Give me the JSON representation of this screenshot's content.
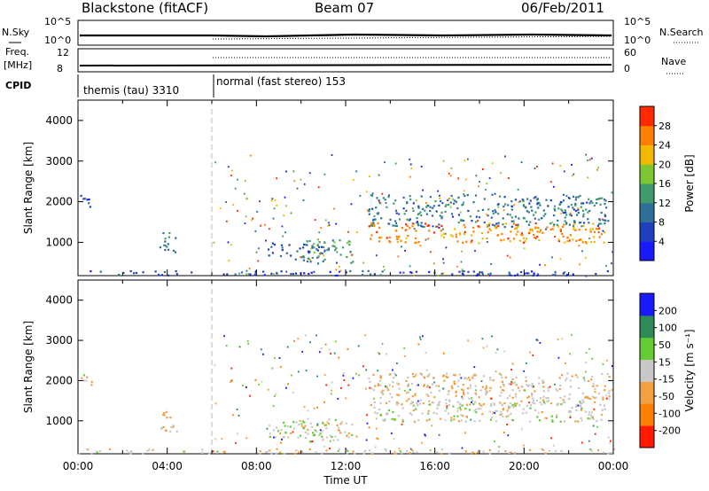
{
  "header": {
    "station": "Blackstone (fitACF)",
    "beam": "Beam 07",
    "date": "06/Feb/2011"
  },
  "top_panels": {
    "nsky_label": "N.Sky",
    "nsearch_label": "N.Search",
    "nsky_ticks": [
      "10^5",
      "10^0"
    ],
    "nsearch_ticks": [
      "10^5",
      "10^0"
    ],
    "freq_label": "Freq.",
    "freq_unit": "[MHz]",
    "freq_ticks": [
      "12",
      "8"
    ],
    "nave_label": "Nave",
    "nave_ticks": [
      "60",
      "0"
    ],
    "cpid_label": "CPID",
    "cpid_segments": [
      {
        "label": "themis (tau) 3310",
        "start_hour": 0,
        "end_hour": 6
      },
      {
        "label": "normal (fast stereo) 153",
        "start_hour": 6,
        "end_hour": 24
      }
    ]
  },
  "chart_data": [
    {
      "type": "heatmap",
      "name": "power",
      "ylabel": "Slant Range [km]",
      "xlabel": "",
      "xlim": [
        0,
        24
      ],
      "ylim": [
        180,
        4500
      ],
      "y_ticks": [
        1000,
        2000,
        3000,
        4000
      ],
      "colorbar": {
        "label": "Power [dB]",
        "ticks": [
          "4",
          "8",
          "12",
          "16",
          "20",
          "24",
          "28"
        ],
        "range": [
          0,
          30
        ],
        "colors": [
          "#1a1aff",
          "#1f3fbf",
          "#2e6f9a",
          "#3f9a6c",
          "#7dc832",
          "#f2b800",
          "#ff7f00",
          "#ff2a00"
        ]
      },
      "echo_regions": [
        {
          "t": [
            0.1,
            0.6
          ],
          "r": [
            1800,
            2200
          ],
          "value": 6
        },
        {
          "t": [
            3.6,
            4.4
          ],
          "r": [
            750,
            1300
          ],
          "value": 10
        },
        {
          "t": [
            8.5,
            11.0
          ],
          "r": [
            600,
            1000
          ],
          "value": 8
        },
        {
          "t": [
            10.0,
            12.3
          ],
          "r": [
            500,
            1100
          ],
          "value": 12
        },
        {
          "t": [
            13.0,
            23.6
          ],
          "r": [
            1000,
            1500
          ],
          "value": 24
        },
        {
          "t": [
            13.0,
            23.8
          ],
          "r": [
            1400,
            2200
          ],
          "value": 10
        },
        {
          "t": [
            0,
            24
          ],
          "r": [
            200,
            320
          ],
          "value": 6
        }
      ]
    },
    {
      "type": "heatmap",
      "name": "velocity",
      "ylabel": "Slant Range [km]",
      "xlabel": "Time UT",
      "xlim": [
        0,
        24
      ],
      "ylim": [
        180,
        4500
      ],
      "y_ticks": [
        1000,
        2000,
        3000,
        4000
      ],
      "x_ticks": [
        "00:00",
        "04:00",
        "08:00",
        "12:00",
        "16:00",
        "20:00",
        "00:00"
      ],
      "colorbar": {
        "label": "Velocity [m s⁻¹]",
        "ticks": [
          "-200",
          "-100",
          "-50",
          "-15",
          "15",
          "50",
          "100",
          "200"
        ],
        "range": [
          -250,
          250
        ],
        "colors": [
          "#ff1a00",
          "#ff7f00",
          "#f2a040",
          "#c8c8c8",
          "#66cc33",
          "#2e8b57",
          "#1a1aff"
        ]
      },
      "echo_regions": [
        {
          "t": [
            0.1,
            0.6
          ],
          "r": [
            1800,
            2200
          ],
          "value": 0
        },
        {
          "t": [
            3.6,
            4.4
          ],
          "r": [
            750,
            1300
          ],
          "value": -60
        },
        {
          "t": [
            8.5,
            11.0
          ],
          "r": [
            600,
            1000
          ],
          "value": 20
        },
        {
          "t": [
            10.0,
            12.3
          ],
          "r": [
            500,
            1100
          ],
          "value": 0
        },
        {
          "t": [
            13.0,
            23.6
          ],
          "r": [
            1000,
            1500
          ],
          "value": 0
        },
        {
          "t": [
            13.0,
            23.8
          ],
          "r": [
            1400,
            2200
          ],
          "value": -30
        },
        {
          "t": [
            0,
            24
          ],
          "r": [
            200,
            320
          ],
          "value": -20
        }
      ]
    }
  ]
}
